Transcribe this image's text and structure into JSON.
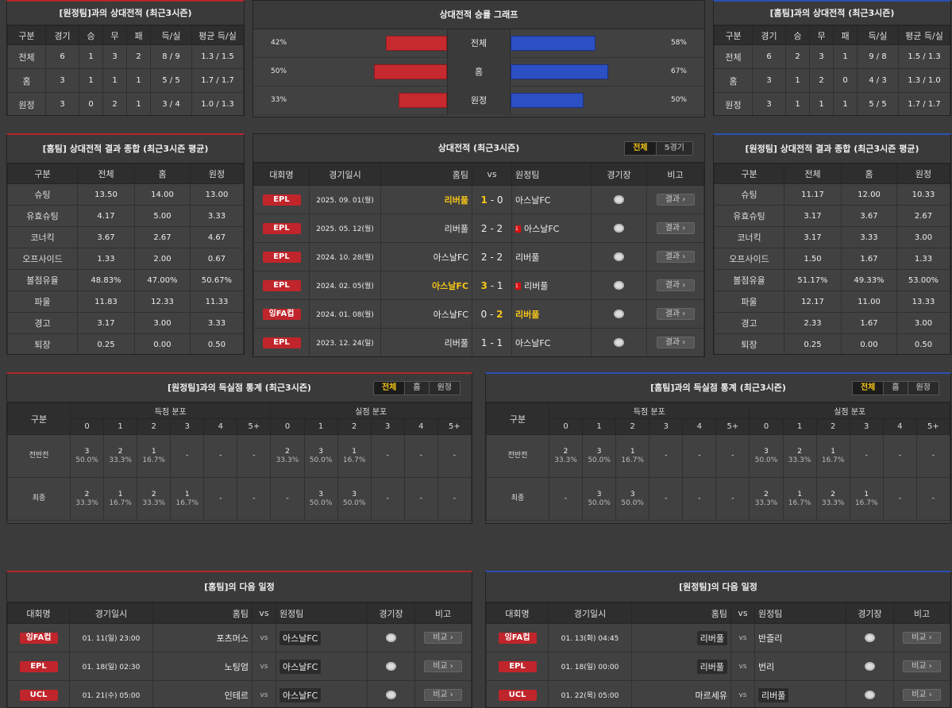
{
  "h2h_away_left": {
    "title": "[원정팀]과의 상대전적 (최근3시즌)",
    "headers": [
      "구분",
      "경기",
      "승",
      "무",
      "패",
      "득/실",
      "평균 득/실"
    ],
    "rows": [
      [
        "전체",
        "6",
        "1",
        "3",
        "2",
        "8 / 9",
        "1.3 / 1.5"
      ],
      [
        "홈",
        "3",
        "1",
        "1",
        "1",
        "5 / 5",
        "1.7 / 1.7"
      ],
      [
        "원정",
        "3",
        "0",
        "2",
        "1",
        "3 / 4",
        "1.0 / 1.3"
      ]
    ]
  },
  "winrate_graph": {
    "title": "상대전적 승률 그래프",
    "rows": [
      {
        "label": "전체",
        "left_pct": "42%",
        "right_pct": "58%",
        "left": 42,
        "right": 58
      },
      {
        "label": "홈",
        "left_pct": "50%",
        "right_pct": "67%",
        "left": 50,
        "right": 67
      },
      {
        "label": "원정",
        "left_pct": "33%",
        "right_pct": "50%",
        "left": 33,
        "right": 50
      }
    ]
  },
  "h2h_home_right": {
    "title": "[홈팀]과의 상대전적 (최근3시즌)",
    "headers": [
      "구분",
      "경기",
      "승",
      "무",
      "패",
      "득/실",
      "평균 득/실"
    ],
    "rows": [
      [
        "전체",
        "6",
        "2",
        "3",
        "1",
        "9 / 8",
        "1.5 / 1.3"
      ],
      [
        "홈",
        "3",
        "1",
        "2",
        "0",
        "4 / 3",
        "1.3 / 1.0"
      ],
      [
        "원정",
        "3",
        "1",
        "1",
        "1",
        "5 / 5",
        "1.7 / 1.7"
      ]
    ]
  },
  "home_summary": {
    "title": "[홈팀] 상대전적 결과 종합 (최근3시즌 평균)",
    "headers": [
      "구분",
      "전체",
      "홈",
      "원정"
    ],
    "rows": [
      [
        "슈팅",
        "13.50",
        "14.00",
        "13.00"
      ],
      [
        "유효슈팅",
        "4.17",
        "5.00",
        "3.33"
      ],
      [
        "코너킥",
        "3.67",
        "2.67",
        "4.67"
      ],
      [
        "오프사이드",
        "1.33",
        "2.00",
        "0.67"
      ],
      [
        "볼점유율",
        "48.83%",
        "47.00%",
        "50.67%"
      ],
      [
        "파울",
        "11.83",
        "12.33",
        "11.33"
      ],
      [
        "경고",
        "3.17",
        "3.00",
        "3.33"
      ],
      [
        "퇴장",
        "0.25",
        "0.00",
        "0.50"
      ]
    ]
  },
  "away_summary": {
    "title": "[원정팀] 상대전적 결과 종합 (최근3시즌 평균)",
    "headers": [
      "구분",
      "전체",
      "홈",
      "원정"
    ],
    "rows": [
      [
        "슈팅",
        "11.17",
        "12.00",
        "10.33"
      ],
      [
        "유효슈팅",
        "3.17",
        "3.67",
        "2.67"
      ],
      [
        "코너킥",
        "3.17",
        "3.33",
        "3.00"
      ],
      [
        "오프사이드",
        "1.50",
        "1.67",
        "1.33"
      ],
      [
        "볼점유율",
        "51.17%",
        "49.33%",
        "53.00%"
      ],
      [
        "파울",
        "12.17",
        "11.00",
        "13.33"
      ],
      [
        "경고",
        "2.33",
        "1.67",
        "3.00"
      ],
      [
        "퇴장",
        "0.25",
        "0.00",
        "0.50"
      ]
    ]
  },
  "h2h_matches": {
    "title": "상대전적 (최근3시즌)",
    "toggle": [
      "전체",
      "5경기"
    ],
    "headers": {
      "league": "대회명",
      "date": "경기일시",
      "home": "홈팀",
      "vs": "vs",
      "away": "원정팀",
      "venue": "경기장",
      "note": "비고"
    },
    "result_label": "결과 ›",
    "matches": [
      {
        "league": "EPL",
        "date": "2025. 09. 01(월)",
        "home": "리버풀",
        "hs": "1",
        "as": "0",
        "away": "아스날FC",
        "win": "home",
        "card": ""
      },
      {
        "league": "EPL",
        "date": "2025. 05. 12(월)",
        "home": "리버풀",
        "hs": "2",
        "as": "2",
        "away": "아스날FC",
        "win": "",
        "card": "1"
      },
      {
        "league": "EPL",
        "date": "2024. 10. 28(월)",
        "home": "아스날FC",
        "hs": "2",
        "as": "2",
        "away": "리버풀",
        "win": "",
        "card": ""
      },
      {
        "league": "EPL",
        "date": "2024. 02. 05(월)",
        "home": "아스날FC",
        "hs": "3",
        "as": "1",
        "away": "리버풀",
        "win": "home",
        "card": "1"
      },
      {
        "league": "잉FA컵",
        "date": "2024. 01. 08(월)",
        "home": "아스날FC",
        "hs": "0",
        "as": "2",
        "away": "리버풀",
        "win": "away",
        "card": ""
      },
      {
        "league": "EPL",
        "date": "2023. 12. 24(일)",
        "home": "리버풀",
        "hs": "1",
        "as": "1",
        "away": "아스날FC",
        "win": "",
        "card": ""
      }
    ]
  },
  "goal_dist_left": {
    "title": "[원정팀]과의 득실점 통계 (최근3시즌)",
    "toggle": [
      "전체",
      "홈",
      "원정"
    ],
    "gubun": "구분",
    "scored_label": "득점 분포",
    "conceded_label": "실점 분포",
    "cols": [
      "0",
      "1",
      "2",
      "3",
      "4",
      "5+"
    ],
    "rows": [
      {
        "label": "전반전",
        "scored": [
          [
            "3",
            "50.0%"
          ],
          [
            "2",
            "33.3%"
          ],
          [
            "1",
            "16.7%"
          ],
          [
            "-",
            ""
          ],
          [
            "-",
            ""
          ],
          [
            "-",
            ""
          ]
        ],
        "conceded": [
          [
            "2",
            "33.3%"
          ],
          [
            "3",
            "50.0%"
          ],
          [
            "1",
            "16.7%"
          ],
          [
            "-",
            ""
          ],
          [
            "-",
            ""
          ],
          [
            "-",
            ""
          ]
        ]
      },
      {
        "label": "최종",
        "scored": [
          [
            "2",
            "33.3%"
          ],
          [
            "1",
            "16.7%"
          ],
          [
            "2",
            "33.3%"
          ],
          [
            "1",
            "16.7%"
          ],
          [
            "-",
            ""
          ],
          [
            "-",
            ""
          ]
        ],
        "conceded": [
          [
            "-",
            ""
          ],
          [
            "3",
            "50.0%"
          ],
          [
            "3",
            "50.0%"
          ],
          [
            "-",
            ""
          ],
          [
            "-",
            ""
          ],
          [
            "-",
            ""
          ]
        ]
      }
    ]
  },
  "goal_dist_right": {
    "title": "[홈팀]과의 득실점 통계 (최근3시즌)",
    "toggle": [
      "전체",
      "홈",
      "원정"
    ],
    "gubun": "구분",
    "scored_label": "득점 분포",
    "conceded_label": "실점 분포",
    "cols": [
      "0",
      "1",
      "2",
      "3",
      "4",
      "5+"
    ],
    "rows": [
      {
        "label": "전반전",
        "scored": [
          [
            "2",
            "33.3%"
          ],
          [
            "3",
            "50.0%"
          ],
          [
            "1",
            "16.7%"
          ],
          [
            "-",
            ""
          ],
          [
            "-",
            ""
          ],
          [
            "-",
            ""
          ]
        ],
        "conceded": [
          [
            "3",
            "50.0%"
          ],
          [
            "2",
            "33.3%"
          ],
          [
            "1",
            "16.7%"
          ],
          [
            "-",
            ""
          ],
          [
            "-",
            ""
          ],
          [
            "-",
            ""
          ]
        ]
      },
      {
        "label": "최종",
        "scored": [
          [
            "-",
            ""
          ],
          [
            "3",
            "50.0%"
          ],
          [
            "3",
            "50.0%"
          ],
          [
            "-",
            ""
          ],
          [
            "-",
            ""
          ],
          [
            "-",
            ""
          ]
        ],
        "conceded": [
          [
            "2",
            "33.3%"
          ],
          [
            "1",
            "16.7%"
          ],
          [
            "2",
            "33.3%"
          ],
          [
            "1",
            "16.7%"
          ],
          [
            "-",
            ""
          ],
          [
            "-",
            ""
          ]
        ]
      }
    ]
  },
  "next_home": {
    "title": "[홈팀]의 다음 일정",
    "headers": {
      "league": "대회명",
      "date": "경기일시",
      "home": "홈팀",
      "vs": "vs",
      "away": "원정팀",
      "venue": "경기장",
      "note": "비고"
    },
    "note_label": "비교 ›",
    "matches": [
      {
        "league": "잉FA컵",
        "date": "01. 11(일) 23:00",
        "home": "포츠머스",
        "away": "아스날FC",
        "hl": "away"
      },
      {
        "league": "EPL",
        "date": "01. 18(일) 02:30",
        "home": "노팅엄",
        "away": "아스날FC",
        "hl": "away"
      },
      {
        "league": "UCL",
        "date": "01. 21(수) 05:00",
        "home": "인테르",
        "away": "아스날FC",
        "hl": "away"
      }
    ]
  },
  "next_away": {
    "title": "[원정팀]의 다음 일정",
    "headers": {
      "league": "대회명",
      "date": "경기일시",
      "home": "홈팀",
      "vs": "vs",
      "away": "원정팀",
      "venue": "경기장",
      "note": "비고"
    },
    "note_label": "비교 ›",
    "matches": [
      {
        "league": "잉FA컵",
        "date": "01. 13(화) 04:45",
        "home": "리버풀",
        "away": "반즐리",
        "hl": "home"
      },
      {
        "league": "EPL",
        "date": "01. 18(일) 00:00",
        "home": "리버풀",
        "away": "번리",
        "hl": "home"
      },
      {
        "league": "UCL",
        "date": "01. 22(목) 05:00",
        "home": "마르세유",
        "away": "리버풀",
        "hl": "away"
      }
    ]
  }
}
